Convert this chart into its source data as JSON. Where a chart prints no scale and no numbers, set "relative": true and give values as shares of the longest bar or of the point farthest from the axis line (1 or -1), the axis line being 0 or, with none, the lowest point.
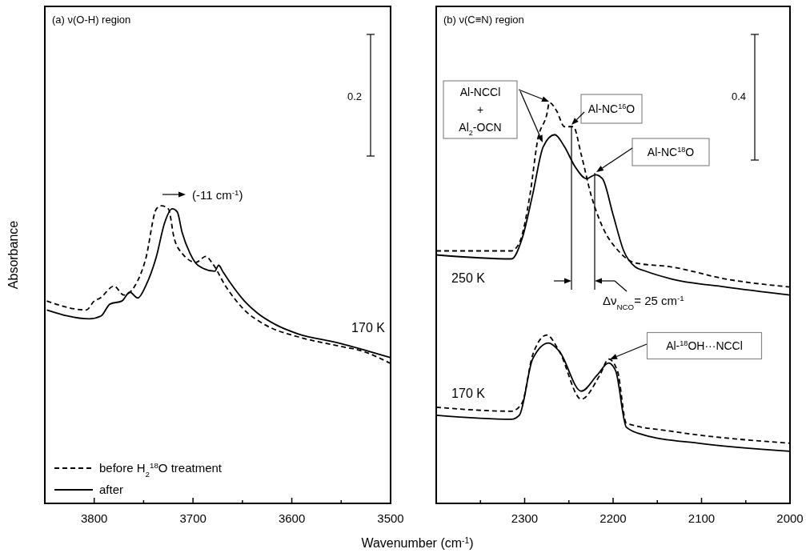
{
  "chart_data": [
    {
      "type": "line",
      "title": "(a) ν(O-H) region",
      "xlabel": "Wavenumber (cm$^{-1}$)",
      "ylabel": "Absorbance",
      "relative": true,
      "xlim": [
        3850,
        3500
      ],
      "xticks": [
        3800,
        {
          "value": 3750,
          "label": null
        },
        3700,
        {
          "value": 3650,
          "label": null
        },
        3600,
        {
          "value": 3550,
          "label": null
        },
        3500
      ],
      "legend": "bottom left",
      "series": [
        {
          "name": "before H$_{2}$$^{18}$O treatment",
          "color": "#000000",
          "line_style": "dashed",
          "x": [
            3848,
            3808,
            3800,
            3794,
            3780,
            3770,
            3759,
            3748,
            3737,
            3732,
            3725,
            3719,
            3711,
            3697,
            3687,
            3681,
            3667,
            3648,
            3627,
            3594,
            3554,
            3527,
            3500
          ],
          "values": [
            0.68,
            0.65,
            0.68,
            0.69,
            0.73,
            0.7,
            0.73,
            0.82,
            0.99,
            1.0,
            0.99,
            0.89,
            0.84,
            0.81,
            0.83,
            0.81,
            0.73,
            0.65,
            0.6,
            0.56,
            0.53,
            0.51,
            0.47
          ]
        },
        {
          "name": "after",
          "color": "#000000",
          "line_style": "solid",
          "x": [
            3848,
            3805,
            3793,
            3784,
            3772,
            3764,
            3756,
            3748,
            3737,
            3729,
            3721,
            3716,
            3711,
            3703,
            3695,
            3678,
            3674,
            3670,
            3662,
            3648,
            3635,
            3616,
            3594,
            3554,
            3521,
            3500
          ],
          "values": [
            0.65,
            0.62,
            0.63,
            0.67,
            0.68,
            0.71,
            0.69,
            0.73,
            0.83,
            0.94,
            0.99,
            0.98,
            0.91,
            0.84,
            0.8,
            0.78,
            0.8,
            0.78,
            0.74,
            0.68,
            0.64,
            0.6,
            0.57,
            0.54,
            0.51,
            0.49
          ]
        }
      ],
      "annotations": [
        "(-11 cm$^{-1}$)",
        "170 K",
        "0.2"
      ]
    },
    {
      "type": "line",
      "title": "(b) ν(C≡N) region",
      "relative": true,
      "xlim": [
        2400,
        2000
      ],
      "xticks": [
        {
          "value": 2350,
          "label": null
        },
        2300,
        {
          "value": 2250,
          "label": null
        },
        2200,
        {
          "value": 2150,
          "label": null
        },
        2100,
        {
          "value": 2050,
          "label": null
        },
        2000
      ],
      "series": [
        {
          "color": "#000000",
          "line_style": "dashed",
          "x": [
            2400,
            2315,
            2306,
            2294,
            2285,
            2275,
            2272,
            2264,
            2255,
            2245,
            2236,
            2225,
            2212,
            2194,
            2175,
            2134,
            2073,
            2000
          ],
          "values": [
            0.63,
            0.63,
            0.65,
            0.77,
            0.91,
            0.97,
            1.0,
            0.98,
            0.94,
            0.94,
            0.87,
            0.77,
            0.69,
            0.63,
            0.6,
            0.59,
            0.56,
            0.54
          ]
        },
        {
          "color": "#000000",
          "line_style": "solid",
          "x": [
            2400,
            2315,
            2303,
            2291,
            2279,
            2266,
            2255,
            2243,
            2230,
            2220,
            2212,
            2200,
            2188,
            2175,
            2164,
            2134,
            2073,
            2000
          ],
          "values": [
            0.62,
            0.61,
            0.66,
            0.77,
            0.89,
            0.92,
            0.89,
            0.84,
            0.81,
            0.82,
            0.81,
            0.72,
            0.63,
            0.59,
            0.58,
            0.56,
            0.54,
            0.52
          ]
        },
        {
          "color": "#000000",
          "line_style": "dashed",
          "x": [
            2400,
            2315,
            2303,
            2291,
            2275,
            2261,
            2236,
            2215,
            2205,
            2195,
            2185,
            2134,
            2000
          ],
          "values": [
            0.24,
            0.23,
            0.25,
            0.37,
            0.42,
            0.38,
            0.26,
            0.32,
            0.36,
            0.33,
            0.2,
            0.18,
            0.15
          ]
        },
        {
          "color": "#000000",
          "line_style": "solid",
          "x": [
            2400,
            2315,
            2306,
            2291,
            2273,
            2261,
            2236,
            2218,
            2205,
            2197,
            2185,
            2164,
            2103,
            2000
          ],
          "values": [
            0.22,
            0.21,
            0.22,
            0.36,
            0.4,
            0.38,
            0.28,
            0.32,
            0.35,
            0.33,
            0.19,
            0.17,
            0.15,
            0.13
          ]
        }
      ],
      "annotations": [
        "Al-NCCl + Al$_{2}$-OCN",
        "Al-NC$^{16}$O",
        "Al-NC$^{18}$O",
        "Δν$_{NCO}$= 25 cm$^{-1}$",
        "Al-$^{18}$OH···NCCl",
        "250 K",
        "170 K",
        "0.4"
      ]
    }
  ]
}
